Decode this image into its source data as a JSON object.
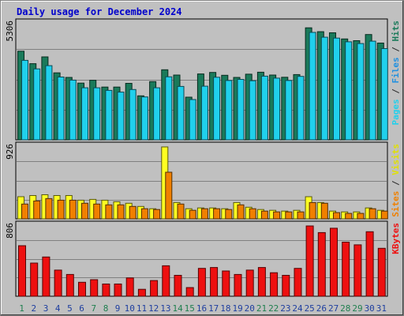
{
  "title": "Daily usage for December 2024",
  "colors": {
    "hits": "#1a7a5a",
    "files": "#20d0ec",
    "visits": "#ffff22",
    "sites": "#f08000",
    "kbytes": "#ee1010",
    "panel_bg": "#c0c0c0",
    "weekend_label": "#1f7f4f",
    "weekday_label": "#1f3f9f"
  },
  "chart_data": [
    {
      "type": "bar",
      "panel": "top",
      "ymax_label": "5306",
      "ylim": [
        0,
        5306
      ],
      "legend_parts": [
        {
          "text": "Pages",
          "color": "#20d0ec"
        },
        {
          "text": " / ",
          "color": "#2a2a2a"
        },
        {
          "text": "Files",
          "color": "#2090e0"
        },
        {
          "text": " / ",
          "color": "#2a2a2a"
        },
        {
          "text": "Hits",
          "color": "#1a7a5a"
        }
      ],
      "categories": [
        "1",
        "2",
        "3",
        "4",
        "5",
        "6",
        "7",
        "8",
        "9",
        "10",
        "11",
        "12",
        "13",
        "14",
        "15",
        "16",
        "17",
        "18",
        "19",
        "20",
        "21",
        "22",
        "23",
        "24",
        "25",
        "26",
        "27",
        "28",
        "29",
        "30",
        "31"
      ],
      "series": [
        {
          "name": "Hits",
          "values": [
            4050,
            3480,
            3790,
            3060,
            2850,
            2590,
            2720,
            2410,
            2410,
            2580,
            2010,
            2660,
            3200,
            2960,
            1950,
            3010,
            3080,
            2950,
            2850,
            3000,
            3090,
            2960,
            2860,
            2980,
            5120,
            4940,
            4890,
            4610,
            4530,
            4810,
            4420
          ]
        },
        {
          "name": "Files",
          "values": [
            3630,
            3240,
            3390,
            2870,
            2730,
            2380,
            2380,
            2260,
            2180,
            2300,
            1960,
            2380,
            2880,
            2440,
            1840,
            2450,
            2860,
            2710,
            2760,
            2700,
            2910,
            2820,
            2710,
            2900,
            4910,
            4690,
            4650,
            4480,
            4400,
            4510,
            4170
          ]
        }
      ]
    },
    {
      "type": "bar",
      "panel": "middle",
      "ymax_label": "926",
      "ylim": [
        0,
        926
      ],
      "legend_parts": [
        {
          "text": "Sites",
          "color": "#f08000"
        },
        {
          "text": " / ",
          "color": "#2a2a2a"
        },
        {
          "text": "Visits",
          "color": "#e0e000"
        }
      ],
      "categories": [
        "1",
        "2",
        "3",
        "4",
        "5",
        "6",
        "7",
        "8",
        "9",
        "10",
        "11",
        "12",
        "13",
        "14",
        "15",
        "16",
        "17",
        "18",
        "19",
        "20",
        "21",
        "22",
        "23",
        "24",
        "25",
        "26",
        "27",
        "28",
        "29",
        "30",
        "31"
      ],
      "series": [
        {
          "name": "Visits",
          "values": [
            285,
            300,
            310,
            300,
            300,
            240,
            250,
            240,
            220,
            200,
            160,
            130,
            926,
            210,
            130,
            140,
            140,
            130,
            210,
            150,
            120,
            110,
            100,
            110,
            285,
            210,
            100,
            90,
            90,
            140,
            110
          ]
        },
        {
          "name": "Sites",
          "values": [
            190,
            230,
            260,
            240,
            240,
            200,
            190,
            180,
            180,
            160,
            130,
            120,
            600,
            190,
            110,
            130,
            130,
            120,
            180,
            130,
            100,
            90,
            90,
            90,
            210,
            200,
            80,
            70,
            70,
            130,
            100
          ]
        }
      ]
    },
    {
      "type": "bar",
      "panel": "bottom",
      "ymax_label": "806",
      "ylim": [
        0,
        806
      ],
      "legend_parts": [
        {
          "text": "KBytes",
          "color": "#ee1010"
        }
      ],
      "categories": [
        "1",
        "2",
        "3",
        "4",
        "5",
        "6",
        "7",
        "8",
        "9",
        "10",
        "11",
        "12",
        "13",
        "14",
        "15",
        "16",
        "17",
        "18",
        "19",
        "20",
        "21",
        "22",
        "23",
        "24",
        "25",
        "26",
        "27",
        "28",
        "29",
        "30",
        "31"
      ],
      "series": [
        {
          "name": "KBytes",
          "values": [
            580,
            380,
            450,
            300,
            250,
            160,
            190,
            140,
            140,
            210,
            80,
            180,
            350,
            240,
            100,
            320,
            330,
            290,
            250,
            300,
            330,
            270,
            240,
            320,
            806,
            730,
            780,
            620,
            590,
            740,
            550
          ]
        }
      ]
    }
  ],
  "x_labels": [
    "1",
    "2",
    "3",
    "4",
    "5",
    "6",
    "7",
    "8",
    "9",
    "10",
    "11",
    "12",
    "13",
    "14",
    "15",
    "16",
    "17",
    "18",
    "19",
    "20",
    "21",
    "22",
    "23",
    "24",
    "25",
    "26",
    "27",
    "28",
    "29",
    "30",
    "31"
  ],
  "weekend_days": [
    "1",
    "7",
    "8",
    "14",
    "15",
    "21",
    "22",
    "28",
    "29"
  ]
}
